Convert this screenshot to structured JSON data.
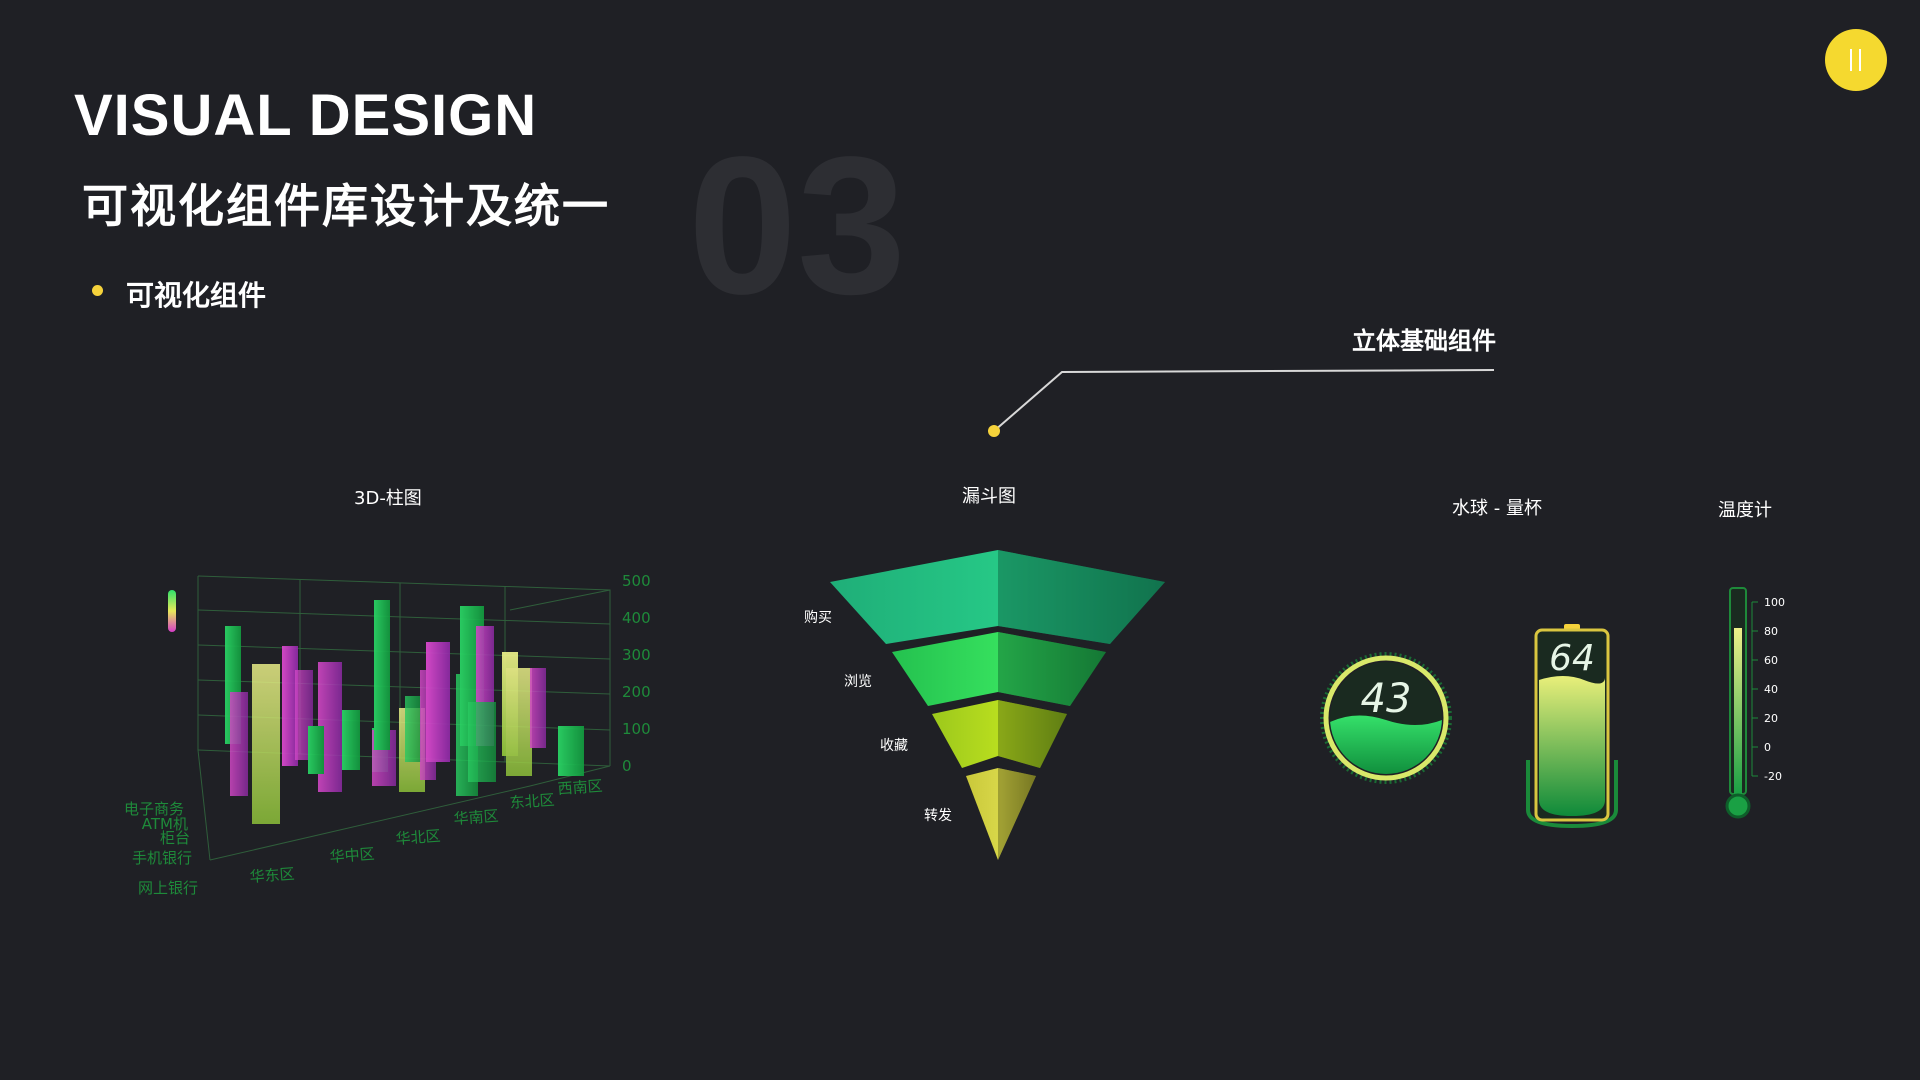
{
  "header": {
    "title_en": "VISUAL DESIGN",
    "title_cn": "可视化组件库设计及统一",
    "section_number": "03",
    "bullet": "可视化组件"
  },
  "callout": {
    "label": "立体基础组件"
  },
  "charts": {
    "bar3d": {
      "title": "3D-柱图",
      "y_ticks": [
        "500",
        "400",
        "300",
        "200",
        "100",
        "0"
      ],
      "x_labels": [
        "华东区",
        "华中区",
        "华北区",
        "华南区",
        "东北区",
        "西南区"
      ],
      "z_labels": [
        "网上银行",
        "手机银行",
        "柜台",
        "ATM机",
        "电子商务"
      ]
    },
    "funnel": {
      "title": "漏斗图",
      "stages": [
        "购买",
        "浏览",
        "收藏",
        "转发"
      ]
    },
    "waterball": {
      "title": "水球 - 量杯",
      "ball_value": "43",
      "cup_value": "64"
    },
    "thermometer": {
      "title": "温度计",
      "ticks": [
        "100",
        "80",
        "60",
        "40",
        "20",
        "0",
        "-20"
      ]
    }
  },
  "colors": {
    "background": "#1f2025",
    "accent_yellow": "#f5d23b",
    "green": "#1fd65f",
    "magenta": "#d63cc8",
    "lime": "#d9e86a",
    "axis_green": "#1e8a3a"
  },
  "icons": {
    "badge": "pause-icon"
  }
}
